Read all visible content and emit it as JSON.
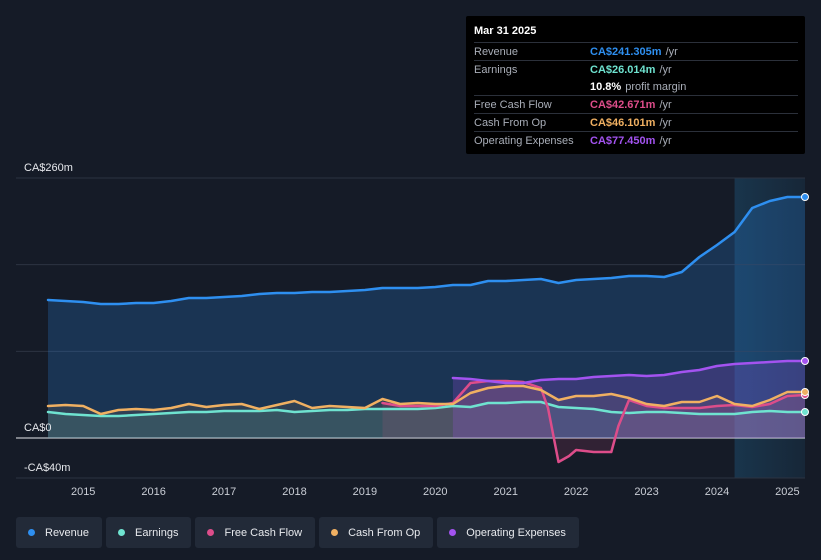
{
  "tooltip": {
    "date": "Mar 31 2025",
    "rows": [
      {
        "label": "Revenue",
        "value": "CA$241.305m",
        "unit": "/yr",
        "color": "#2e8ff0"
      },
      {
        "label": "Earnings",
        "value": "CA$26.014m",
        "unit": "/yr",
        "color": "#6fe3d0"
      },
      {
        "label": "",
        "value": "10.8%",
        "unit": "profit margin",
        "color": "#ffffff"
      },
      {
        "label": "Free Cash Flow",
        "value": "CA$42.671m",
        "unit": "/yr",
        "color": "#dd4d8a"
      },
      {
        "label": "Cash From Op",
        "value": "CA$46.101m",
        "unit": "/yr",
        "color": "#f0b062"
      },
      {
        "label": "Operating Expenses",
        "value": "CA$77.450m",
        "unit": "/yr",
        "color": "#a353f0"
      }
    ]
  },
  "legend": [
    {
      "label": "Revenue",
      "color": "#2e8ff0"
    },
    {
      "label": "Earnings",
      "color": "#6fe3d0"
    },
    {
      "label": "Free Cash Flow",
      "color": "#dd4d8a"
    },
    {
      "label": "Cash From Op",
      "color": "#f0b062"
    },
    {
      "label": "Operating Expenses",
      "color": "#a353f0"
    }
  ],
  "chart_data": {
    "type": "line",
    "y_tick_labels": [
      {
        "value": 260,
        "label": "CA$260m"
      },
      {
        "value": 0,
        "label": "CA$0"
      },
      {
        "value": -40,
        "label": "-CA$40m"
      }
    ],
    "ylim": [
      -40,
      260
    ],
    "xlim": [
      2014.5,
      2025.25
    ],
    "x_tick_labels": [
      "2015",
      "2016",
      "2017",
      "2018",
      "2019",
      "2020",
      "2021",
      "2022",
      "2023",
      "2024",
      "2025"
    ],
    "grid": true,
    "highlight_start": 2024.25,
    "series": [
      {
        "name": "Revenue",
        "color": "#2e8ff0",
        "x": [
          2014.5,
          2014.75,
          2015.0,
          2015.25,
          2015.5,
          2015.75,
          2016.0,
          2016.25,
          2016.5,
          2016.75,
          2017.0,
          2017.25,
          2017.5,
          2017.75,
          2018.0,
          2018.25,
          2018.5,
          2018.75,
          2019.0,
          2019.25,
          2019.5,
          2019.75,
          2020.0,
          2020.25,
          2020.5,
          2020.75,
          2021.0,
          2021.25,
          2021.5,
          2021.75,
          2022.0,
          2022.25,
          2022.5,
          2022.75,
          2023.0,
          2023.25,
          2023.5,
          2023.75,
          2024.0,
          2024.25,
          2024.5,
          2024.75,
          2025.0,
          2025.25
        ],
        "y": [
          138,
          137,
          136,
          134,
          134,
          135,
          135,
          137,
          140,
          140,
          141,
          142,
          144,
          145,
          145,
          146,
          146,
          147,
          148,
          150,
          150,
          150,
          151,
          153,
          153,
          157,
          157,
          158,
          159,
          155,
          158,
          159,
          160,
          162,
          162,
          161,
          166,
          181,
          193,
          206,
          230,
          237,
          241,
          241
        ]
      },
      {
        "name": "Earnings",
        "color": "#6fe3d0",
        "x": [
          2014.5,
          2014.75,
          2015.0,
          2015.25,
          2015.5,
          2015.75,
          2016.0,
          2016.25,
          2016.5,
          2016.75,
          2017.0,
          2017.25,
          2017.5,
          2017.75,
          2018.0,
          2018.25,
          2018.5,
          2018.75,
          2019.0,
          2019.25,
          2019.5,
          2019.75,
          2020.0,
          2020.25,
          2020.5,
          2020.75,
          2021.0,
          2021.25,
          2021.5,
          2021.75,
          2022.0,
          2022.25,
          2022.5,
          2022.75,
          2023.0,
          2023.25,
          2023.5,
          2023.75,
          2024.0,
          2024.25,
          2024.5,
          2024.75,
          2025.0,
          2025.25
        ],
        "y": [
          26,
          24,
          23,
          22,
          22,
          23,
          24,
          25,
          26,
          26,
          27,
          27,
          27,
          28,
          26,
          27,
          28,
          28,
          29,
          29,
          29,
          29,
          30,
          32,
          31,
          35,
          35,
          36,
          36,
          31,
          30,
          29,
          26,
          25,
          26,
          26,
          25,
          24,
          24,
          24,
          26,
          27,
          26,
          26
        ]
      },
      {
        "name": "Free Cash Flow",
        "color": "#dd4d8a",
        "x": [
          2019.25,
          2019.5,
          2019.75,
          2020.0,
          2020.25,
          2020.5,
          2020.75,
          2021.0,
          2021.25,
          2021.5,
          2021.6,
          2021.75,
          2021.9,
          2022.0,
          2022.25,
          2022.5,
          2022.6,
          2022.75,
          2023.0,
          2023.25,
          2023.5,
          2023.75,
          2024.0,
          2024.25,
          2024.5,
          2024.75,
          2025.0,
          2025.25
        ],
        "y": [
          35,
          32,
          32,
          32,
          35,
          55,
          57,
          57,
          56,
          50,
          30,
          -24,
          -18,
          -12,
          -14,
          -14,
          12,
          38,
          32,
          30,
          30,
          30,
          32,
          33,
          31,
          34,
          42,
          43
        ]
      },
      {
        "name": "Cash From Op",
        "color": "#f0b062",
        "x": [
          2014.5,
          2014.75,
          2015.0,
          2015.25,
          2015.5,
          2015.75,
          2016.0,
          2016.25,
          2016.5,
          2016.75,
          2017.0,
          2017.25,
          2017.5,
          2017.75,
          2018.0,
          2018.25,
          2018.5,
          2018.75,
          2019.0,
          2019.25,
          2019.5,
          2019.75,
          2020.0,
          2020.25,
          2020.5,
          2020.75,
          2021.0,
          2021.25,
          2021.5,
          2021.75,
          2022.0,
          2022.25,
          2022.5,
          2022.75,
          2023.0,
          2023.25,
          2023.5,
          2023.75,
          2024.0,
          2024.25,
          2024.5,
          2024.75,
          2025.0,
          2025.25
        ],
        "y": [
          32,
          33,
          32,
          24,
          28,
          29,
          28,
          30,
          34,
          31,
          33,
          34,
          29,
          33,
          37,
          30,
          32,
          31,
          30,
          39,
          34,
          35,
          34,
          34,
          45,
          50,
          52,
          52,
          48,
          38,
          42,
          42,
          44,
          40,
          34,
          32,
          36,
          36,
          42,
          34,
          32,
          38,
          46,
          46
        ]
      },
      {
        "name": "Operating Expenses",
        "color": "#a353f0",
        "x": [
          2020.25,
          2020.5,
          2020.75,
          2021.0,
          2021.25,
          2021.5,
          2021.75,
          2022.0,
          2022.25,
          2022.5,
          2022.75,
          2023.0,
          2023.25,
          2023.5,
          2023.75,
          2024.0,
          2024.25,
          2024.5,
          2024.75,
          2025.0,
          2025.25
        ],
        "y": [
          60,
          59,
          57,
          55,
          55,
          58,
          59,
          59,
          61,
          62,
          63,
          62,
          63,
          66,
          68,
          72,
          74,
          75,
          76,
          77,
          77
        ]
      }
    ]
  }
}
